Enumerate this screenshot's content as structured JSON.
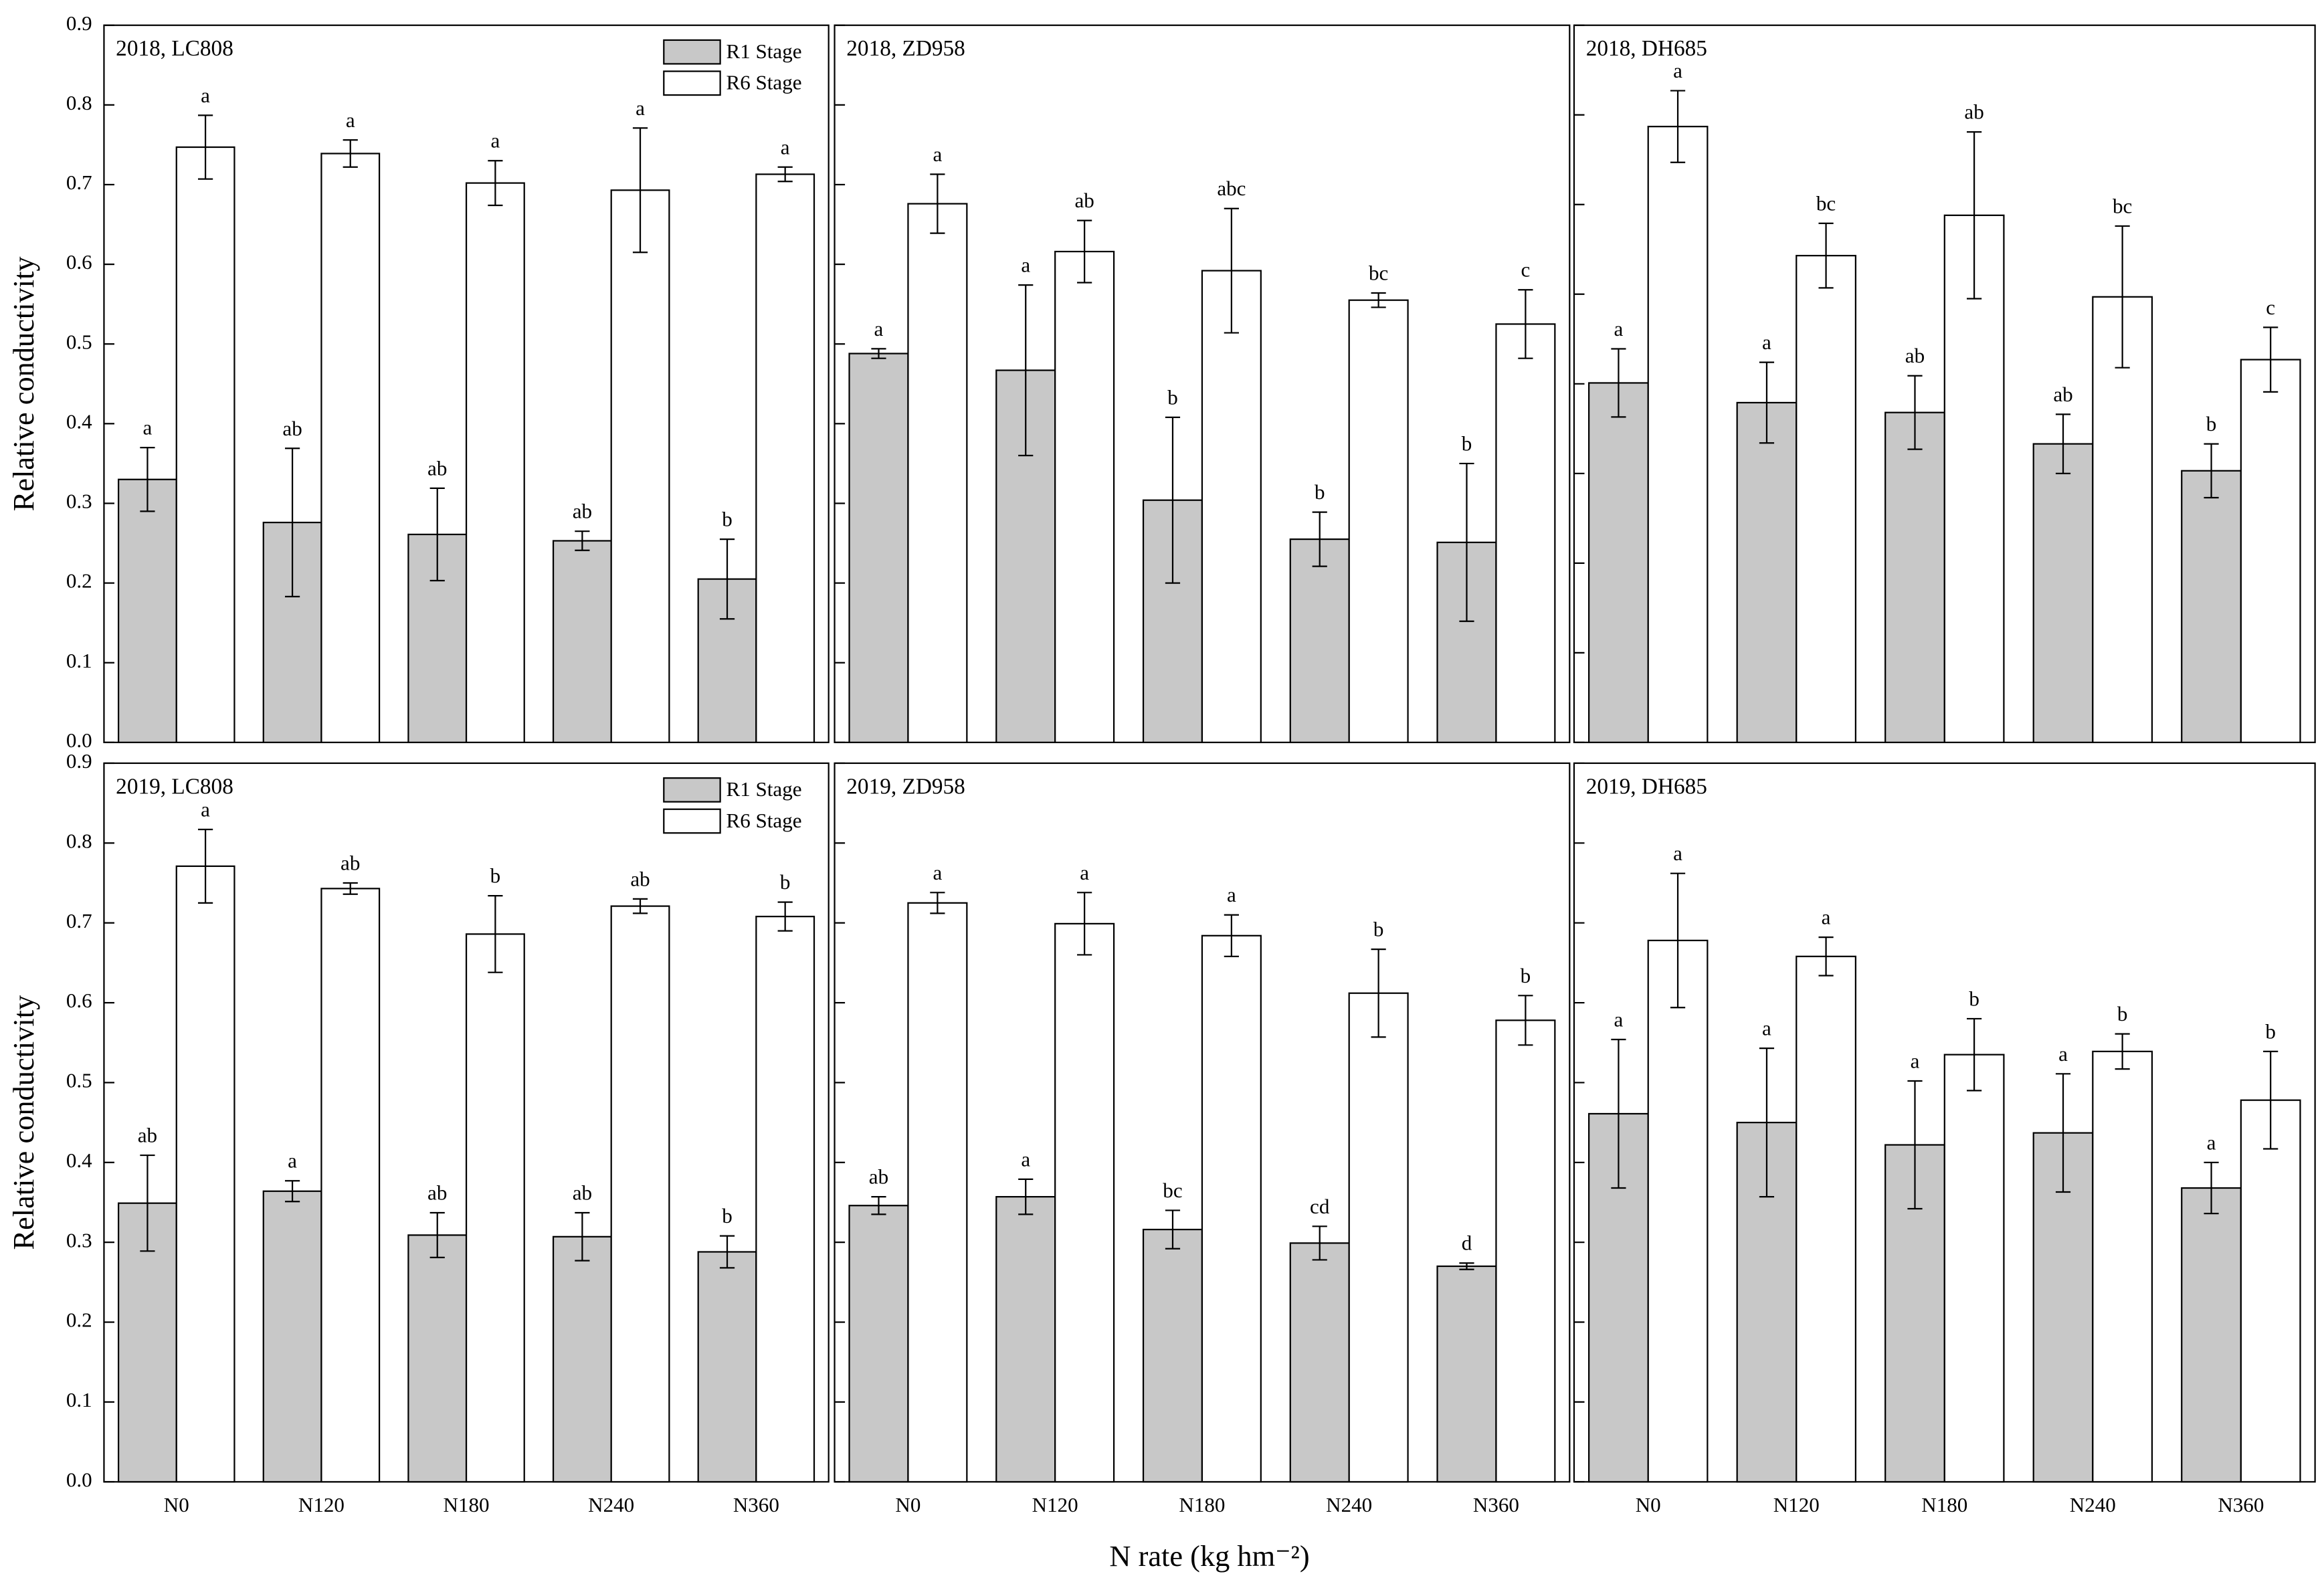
{
  "chart_data": [
    {
      "type": "bar",
      "title": "2018, LC808",
      "ylabel": "Relative conductivity",
      "legend": "upper right",
      "ytick_labels": true,
      "ylim": [
        0,
        0.9
      ],
      "yticks": [
        {
          "value": 0,
          "label": "0.0"
        },
        0.1,
        0.2,
        0.3,
        0.4,
        0.5,
        0.6,
        0.7,
        0.8,
        0.9
      ],
      "series": [
        {
          "name": "R1 Stage",
          "color": "#c8c8c8",
          "values": [
            0.33,
            0.276,
            0.261,
            0.253,
            0.205
          ],
          "errors": [
            0.04,
            0.093,
            0.058,
            0.012,
            0.05
          ],
          "letters": [
            "a",
            "ab",
            "ab",
            "ab",
            "b"
          ]
        },
        {
          "name": "R6 Stage",
          "color": "#ffffff",
          "values": [
            0.747,
            0.739,
            0.702,
            0.693,
            0.713
          ],
          "errors": [
            0.04,
            0.017,
            0.028,
            0.078,
            0.009
          ],
          "letters": [
            "a",
            "a",
            "a",
            "a",
            "a"
          ]
        }
      ]
    },
    {
      "type": "bar",
      "title": "2018, ZD958",
      "ytick_labels": false,
      "ylim": [
        0,
        0.9
      ],
      "yticks": [
        0,
        0.1,
        0.2,
        0.3,
        0.4,
        0.5,
        0.6,
        0.7,
        0.8,
        0.9
      ],
      "series": [
        {
          "name": "R1 Stage",
          "color": "#c8c8c8",
          "values": [
            0.488,
            0.467,
            0.304,
            0.255,
            0.251
          ],
          "errors": [
            0.006,
            0.107,
            0.104,
            0.034,
            0.099
          ],
          "letters": [
            "a",
            "a",
            "b",
            "b",
            "b"
          ]
        },
        {
          "name": "R6 Stage",
          "color": "#ffffff",
          "values": [
            0.676,
            0.616,
            0.592,
            0.555,
            0.525
          ],
          "errors": [
            0.037,
            0.039,
            0.078,
            0.009,
            0.043
          ],
          "letters": [
            "a",
            "ab",
            "abc",
            "bc",
            "c"
          ]
        }
      ]
    },
    {
      "type": "bar",
      "title": "2018, DH685",
      "ytick_labels": false,
      "ylim": [
        0,
        0.8
      ],
      "yticks": [
        0,
        0.1,
        0.2,
        0.3,
        0.4,
        0.5,
        0.6,
        0.7,
        0.8
      ],
      "series": [
        {
          "name": "R1 Stage",
          "color": "#c8c8c8",
          "values": [
            0.401,
            0.379,
            0.368,
            0.333,
            0.303
          ],
          "errors": [
            0.038,
            0.045,
            0.041,
            0.033,
            0.03
          ],
          "letters": [
            "a",
            "a",
            "ab",
            "ab",
            "b"
          ]
        },
        {
          "name": "R6 Stage",
          "color": "#ffffff",
          "values": [
            0.687,
            0.543,
            0.588,
            0.497,
            0.427
          ],
          "errors": [
            0.04,
            0.036,
            0.093,
            0.079,
            0.036
          ],
          "letters": [
            "a",
            "bc",
            "ab",
            "bc",
            "c"
          ]
        }
      ]
    },
    {
      "type": "bar",
      "title": "2019, LC808",
      "ylabel": "Relative conductivity",
      "legend": "upper right",
      "ytick_labels": true,
      "categories": [
        "N0",
        "N120",
        "N180",
        "N240",
        "N360"
      ],
      "ylim": [
        0,
        0.9
      ],
      "yticks": [
        {
          "value": 0,
          "label": "0.0"
        },
        0.1,
        0.2,
        0.3,
        0.4,
        0.5,
        0.6,
        0.7,
        0.8,
        0.9
      ],
      "series": [
        {
          "name": "R1 Stage",
          "color": "#c8c8c8",
          "values": [
            0.349,
            0.364,
            0.309,
            0.307,
            0.288
          ],
          "errors": [
            0.06,
            0.013,
            0.028,
            0.03,
            0.02
          ],
          "letters": [
            "ab",
            "a",
            "ab",
            "ab",
            "b"
          ]
        },
        {
          "name": "R6 Stage",
          "color": "#ffffff",
          "values": [
            0.771,
            0.743,
            0.686,
            0.721,
            0.708
          ],
          "errors": [
            0.046,
            0.007,
            0.048,
            0.009,
            0.018
          ],
          "letters": [
            "a",
            "ab",
            "b",
            "ab",
            "b"
          ]
        }
      ]
    },
    {
      "type": "bar",
      "title": "2019, ZD958",
      "ytick_labels": false,
      "xlabel": "N rate (kg hm⁻²)",
      "categories": [
        "N0",
        "N120",
        "N180",
        "N240",
        "N360"
      ],
      "ylim": [
        0,
        0.9
      ],
      "yticks": [
        0,
        0.1,
        0.2,
        0.3,
        0.4,
        0.5,
        0.6,
        0.7,
        0.8,
        0.9
      ],
      "series": [
        {
          "name": "R1 Stage",
          "color": "#c8c8c8",
          "values": [
            0.346,
            0.357,
            0.316,
            0.299,
            0.27
          ],
          "errors": [
            0.011,
            0.022,
            0.024,
            0.021,
            0.004
          ],
          "letters": [
            "ab",
            "a",
            "bc",
            "cd",
            "d"
          ]
        },
        {
          "name": "R6 Stage",
          "color": "#ffffff",
          "values": [
            0.725,
            0.699,
            0.684,
            0.612,
            0.578
          ],
          "errors": [
            0.013,
            0.039,
            0.026,
            0.055,
            0.031
          ],
          "letters": [
            "a",
            "a",
            "a",
            "b",
            "b"
          ]
        }
      ]
    },
    {
      "type": "bar",
      "title": "2019, DH685",
      "ytick_labels": false,
      "categories": [
        "N0",
        "N120",
        "N180",
        "N240",
        "N360"
      ],
      "ylim": [
        0,
        0.9
      ],
      "yticks": [
        0,
        0.1,
        0.2,
        0.3,
        0.4,
        0.5,
        0.6,
        0.7,
        0.8,
        0.9
      ],
      "series": [
        {
          "name": "R1 Stage",
          "color": "#c8c8c8",
          "values": [
            0.461,
            0.45,
            0.422,
            0.437,
            0.368
          ],
          "errors": [
            0.093,
            0.093,
            0.08,
            0.074,
            0.032
          ],
          "letters": [
            "a",
            "a",
            "a",
            "a",
            "a"
          ]
        },
        {
          "name": "R6 Stage",
          "color": "#ffffff",
          "values": [
            0.678,
            0.658,
            0.535,
            0.539,
            0.478
          ],
          "errors": [
            0.084,
            0.024,
            0.045,
            0.022,
            0.061
          ],
          "letters": [
            "a",
            "a",
            "b",
            "b",
            "b"
          ]
        }
      ]
    }
  ]
}
